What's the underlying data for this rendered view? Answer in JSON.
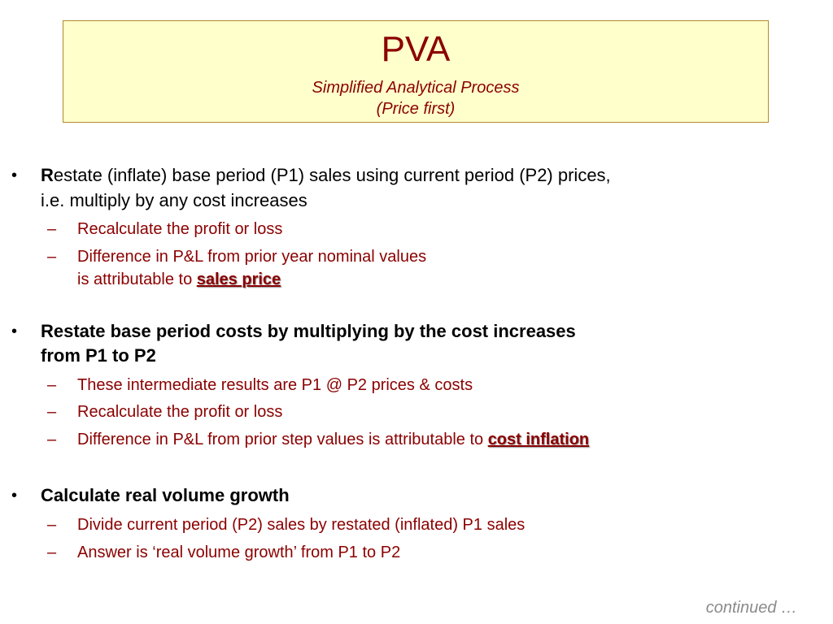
{
  "header": {
    "title": "PVA",
    "subtitle_line1": "Simplified Analytical Process",
    "subtitle_line2": "(Price first)"
  },
  "bullets": [
    {
      "marker": "•",
      "first_letter": "R",
      "line1_rest": "estate (inflate) base period (P1) sales using current period (P2) prices,",
      "line2": "i.e. multiply by any cost increases",
      "subs": [
        {
          "marker": "–",
          "text": "Recalculate the profit or loss"
        },
        {
          "marker": "–",
          "text": "Difference in P&L from prior year nominal values",
          "line2_prefix": "is attributable to ",
          "highlight": "sales price"
        }
      ]
    },
    {
      "marker": "•",
      "line1": "Restate base period costs by multiplying by the cost increases",
      "line2": "from P1 to P2",
      "subs": [
        {
          "marker": "–",
          "text": "These intermediate results are P1 @ P2 prices & costs"
        },
        {
          "marker": "–",
          "text": "Recalculate the profit or loss"
        },
        {
          "marker": "–",
          "text": "Difference in P&L from prior step values is attributable to ",
          "highlight": "cost inflation"
        }
      ]
    },
    {
      "marker": "•",
      "line1": "Calculate real volume growth",
      "subs": [
        {
          "marker": "–",
          "text": "Divide current period (P2) sales by restated (inflated) P1 sales"
        },
        {
          "marker": "–",
          "text": "Answer is ‘real volume growth’ from P1 to P2"
        }
      ]
    }
  ],
  "footer": {
    "text": "continued …"
  },
  "colors": {
    "title": "#8b0000",
    "title_box_bg": "#ffffcc",
    "title_box_border": "#b08a2e",
    "sub_text": "#8b0000",
    "footer": "#8a8a8a"
  }
}
